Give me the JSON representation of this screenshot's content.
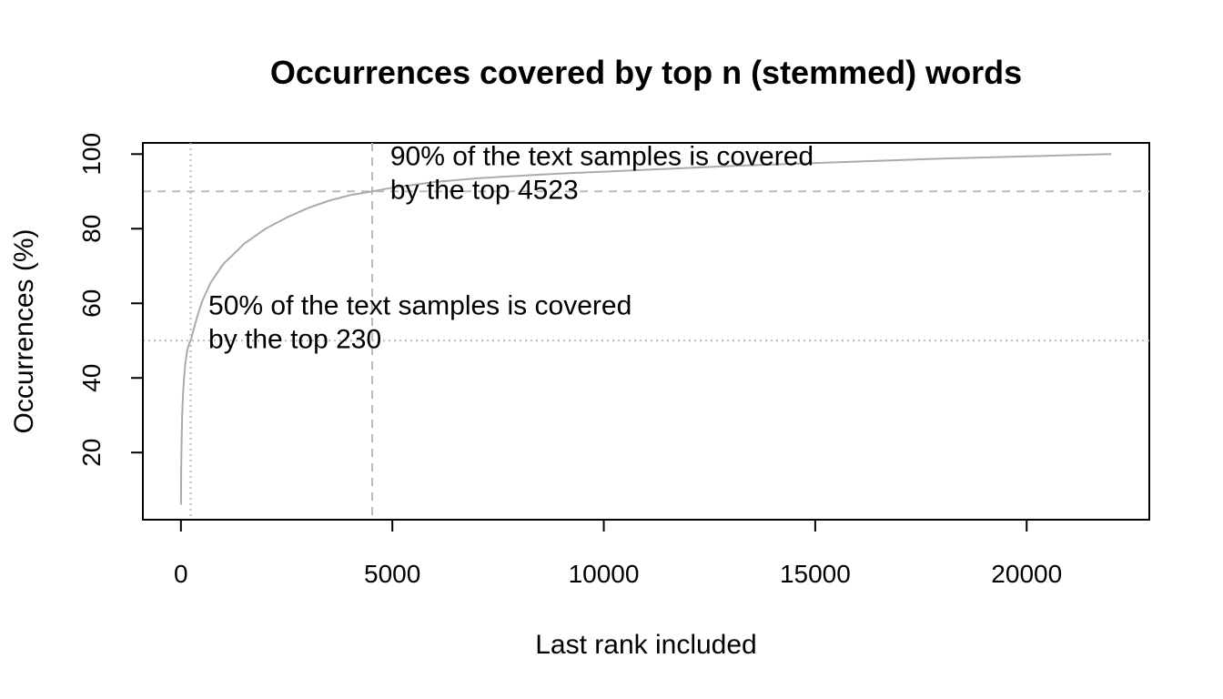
{
  "chart_data": {
    "type": "line",
    "title": "Occurrences covered by top n (stemmed) words",
    "xlabel": "Last rank included",
    "ylabel": "Occurrences (%)",
    "xlim": [
      -900,
      22900
    ],
    "ylim": [
      2,
      103
    ],
    "x_ticks": [
      0,
      5000,
      10000,
      15000,
      20000
    ],
    "y_ticks": [
      20,
      40,
      60,
      80,
      100
    ],
    "grid": false,
    "series": [
      {
        "name": "coverage",
        "color": "#aaaaaa",
        "x": [
          1,
          5,
          10,
          20,
          30,
          50,
          75,
          100,
          150,
          200,
          230,
          300,
          400,
          500,
          700,
          1000,
          1500,
          2000,
          2500,
          3000,
          3500,
          4000,
          4523,
          5000,
          6000,
          7000,
          8000,
          9000,
          10000,
          11000,
          12000,
          13000,
          14000,
          15000,
          16000,
          17000,
          18000,
          19000,
          20000,
          21000,
          22000
        ],
        "y": [
          6,
          14,
          19,
          25.5,
          30,
          35.5,
          40,
          43.5,
          47.5,
          49.3,
          50,
          53,
          57,
          60.5,
          65.5,
          70.5,
          76,
          80,
          83,
          85.5,
          87.5,
          89,
          90,
          91,
          92.5,
          93.5,
          94.2,
          94.8,
          95.3,
          95.8,
          96.3,
          96.8,
          97.2,
          97.6,
          98,
          98.4,
          98.8,
          99.1,
          99.4,
          99.7,
          100
        ]
      }
    ],
    "reference_lines": [
      {
        "name": "x-230",
        "axis": "x",
        "value": 230,
        "style": "dotted"
      },
      {
        "name": "y-50",
        "axis": "y",
        "value": 50,
        "style": "dotted"
      },
      {
        "name": "x-4523",
        "axis": "x",
        "value": 4523,
        "style": "dashed"
      },
      {
        "name": "y-90",
        "axis": "y",
        "value": 90,
        "style": "dashed"
      }
    ],
    "annotations": [
      {
        "name": "annotation-50",
        "x": 650,
        "y": 57,
        "lines": [
          "50% of the text samples is covered",
          "by the top 230"
        ]
      },
      {
        "name": "annotation-90",
        "x": 4950,
        "y": 97,
        "lines": [
          "90% of the text samples is covered",
          "by the top 4523"
        ]
      }
    ]
  }
}
